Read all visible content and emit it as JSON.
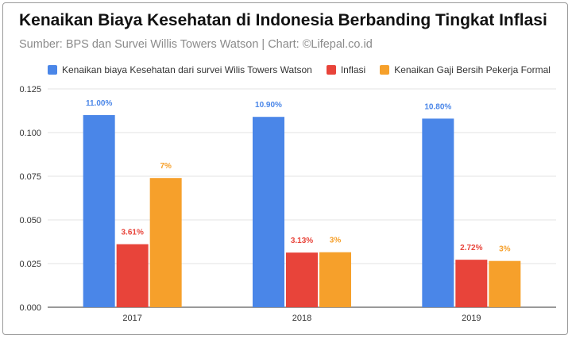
{
  "title": "Kenaikan Biaya Kesehatan di Indonesia Berbanding Tingkat Inflasi",
  "subtitle": "Sumber: BPS dan Survei Willis Towers Watson | Chart: ©Lifepal.co.id",
  "chart_data": {
    "type": "bar",
    "categories": [
      "2017",
      "2018",
      "2019"
    ],
    "series": [
      {
        "name": "Kenaikan biaya Kesehatan dari survei Wilis Towers Watson",
        "color": "#4a86e8",
        "values": [
          0.11,
          0.109,
          0.108
        ],
        "labels": [
          "11.00%",
          "10.90%",
          "10.80%"
        ]
      },
      {
        "name": "Inflasi",
        "color": "#e8443a",
        "values": [
          0.0361,
          0.0313,
          0.0272
        ],
        "labels": [
          "3.61%",
          "3.13%",
          "2.72%"
        ]
      },
      {
        "name": "Kenaikan Gaji Bersih Pekerja Formal",
        "color": "#f6a02b",
        "values": [
          0.074,
          0.0315,
          0.0265
        ],
        "labels": [
          "7%",
          "3%",
          "3%"
        ]
      }
    ],
    "yticks": [
      "0.000",
      "0.025",
      "0.050",
      "0.075",
      "0.100",
      "0.125"
    ],
    "ylim": [
      0,
      0.125
    ],
    "grid": true,
    "legend": "top"
  }
}
